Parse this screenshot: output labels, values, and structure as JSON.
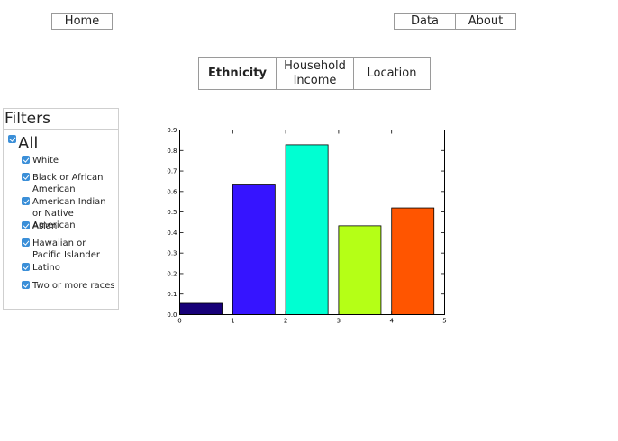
{
  "nav": {
    "home_label": "Home",
    "data_label": "Data",
    "about_label": "About"
  },
  "tabs": [
    {
      "label": "Ethnicity",
      "active": true
    },
    {
      "label": "Household\nIncome",
      "active": false
    },
    {
      "label": "Location",
      "active": false
    }
  ],
  "filters": {
    "title": "Filters",
    "all_label": "All",
    "all_checked": true,
    "options": [
      {
        "label": "White",
        "checked": true
      },
      {
        "label": "Black or African American",
        "checked": true
      },
      {
        "label": "American Indian or Native American",
        "checked": true
      },
      {
        "label": "Asian",
        "checked": true
      },
      {
        "label": "Hawaiian or Pacific Islander",
        "checked": true
      },
      {
        "label": "Latino",
        "checked": true
      },
      {
        "label": "Two or more races",
        "checked": true
      }
    ],
    "checkbox_color": "#3b8fd8"
  },
  "chart_data": {
    "type": "bar",
    "bars": [
      {
        "x": 0,
        "value": 0.055,
        "color": "#170078"
      },
      {
        "x": 1,
        "value": 0.632,
        "color": "#3614ff"
      },
      {
        "x": 2,
        "value": 0.828,
        "color": "#00ffd2"
      },
      {
        "x": 3,
        "value": 0.433,
        "color": "#b5ff16"
      },
      {
        "x": 4,
        "value": 0.52,
        "color": "#ff5500"
      }
    ],
    "bar_width": 0.8,
    "xlim": [
      0,
      5
    ],
    "ylim": [
      0,
      0.9
    ],
    "x_ticks": [
      0,
      1,
      2,
      3,
      4,
      5
    ],
    "x_tick_labels": [
      "0",
      "1",
      "2",
      "3",
      "4",
      "5"
    ],
    "y_ticks": [
      0.0,
      0.1,
      0.2,
      0.3,
      0.4,
      0.5,
      0.6,
      0.7,
      0.8,
      0.9
    ],
    "y_tick_labels": [
      "0.0",
      "0.1",
      "0.2",
      "0.3",
      "0.4",
      "0.5",
      "0.6",
      "0.7",
      "0.8",
      "0.9"
    ],
    "title": "",
    "xlabel": "",
    "ylabel": "",
    "grid": false
  }
}
